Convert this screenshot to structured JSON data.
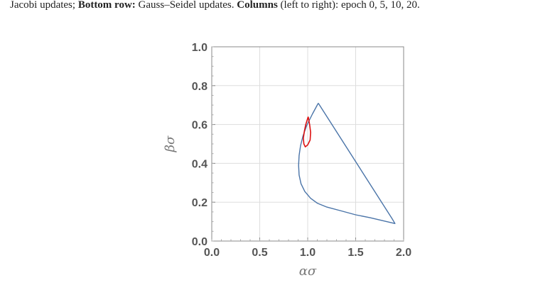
{
  "caption": {
    "seg1": "Jacobi updates; ",
    "seg2": "Bottom row:",
    "seg3": " Gauss–Seidel updates. ",
    "seg4": "Columns",
    "seg5": " (left to right): epoch 0, 5, 10, 20."
  },
  "chart_data": {
    "type": "line",
    "xlabel": "ασ",
    "ylabel": "βσ",
    "xlim": [
      0,
      2
    ],
    "ylim": [
      0,
      1
    ],
    "xticks": [
      "0.0",
      "0.5",
      "1.0",
      "1.5",
      "2.0"
    ],
    "yticks": [
      "0.0",
      "0.2",
      "0.4",
      "0.6",
      "0.8",
      "1.0"
    ],
    "grid": true,
    "legend": "none",
    "series": [
      {
        "color": "#4a74a8",
        "x": [
          1.11,
          1.05,
          0.99,
          0.95,
          0.925,
          0.91,
          0.905,
          0.91,
          0.93,
          0.97,
          1.03,
          1.1,
          1.2,
          1.35,
          1.5,
          1.65,
          1.78,
          1.91,
          1.88,
          1.11
        ],
        "y": [
          0.71,
          0.655,
          0.595,
          0.54,
          0.49,
          0.44,
          0.39,
          0.34,
          0.295,
          0.255,
          0.22,
          0.195,
          0.175,
          0.155,
          0.135,
          0.12,
          0.105,
          0.09,
          0.115,
          0.71
        ]
      },
      {
        "color": "#dd1111",
        "x": [
          1.005,
          1.02,
          1.03,
          1.025,
          1.0,
          0.975,
          0.96,
          0.955,
          0.965,
          0.98,
          1.005
        ],
        "y": [
          0.64,
          0.6,
          0.56,
          0.52,
          0.495,
          0.485,
          0.5,
          0.53,
          0.565,
          0.6,
          0.64
        ]
      }
    ]
  }
}
